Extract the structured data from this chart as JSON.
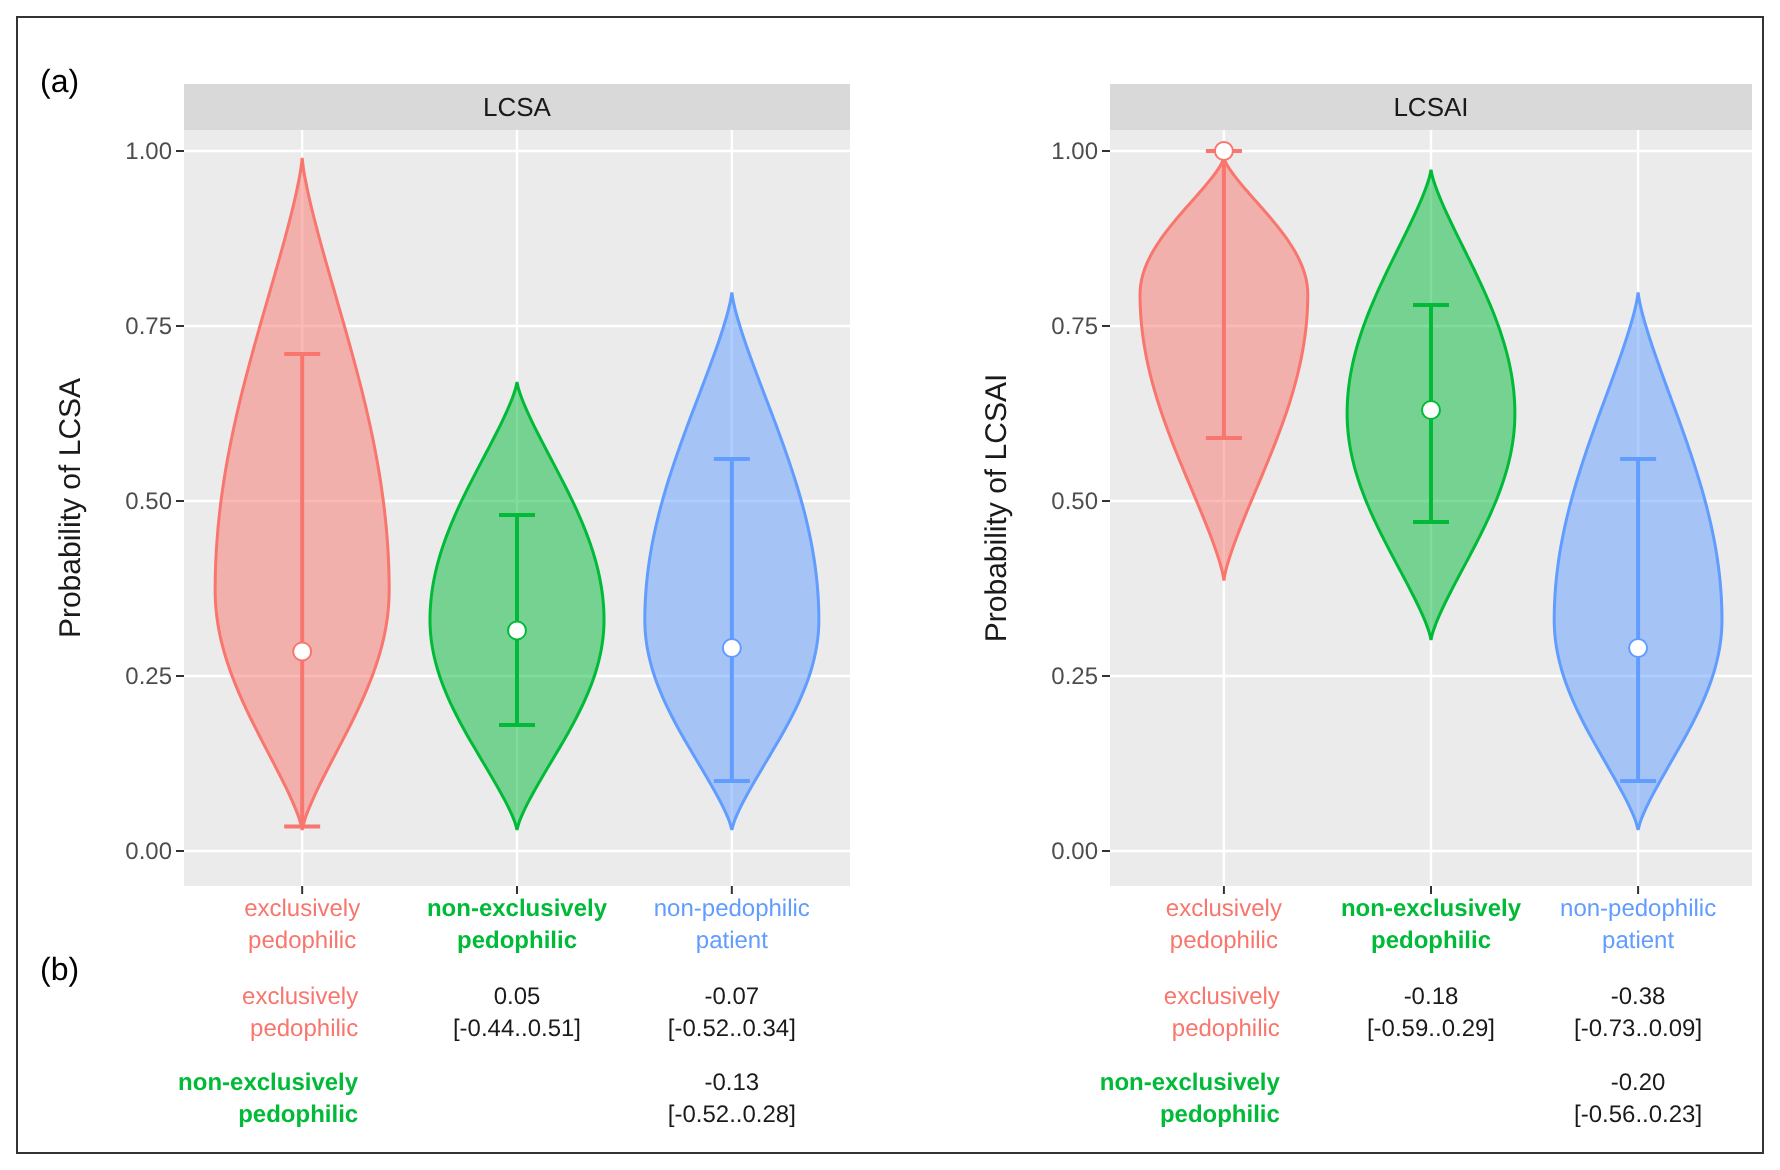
{
  "chart_data": [
    {
      "type": "scatter",
      "title": "LCSA",
      "ylabel": "Probability of LCSA",
      "categories": [
        "exclusively pedophilic",
        "non-exclusively pedophilic",
        "non-pedophilic patient"
      ],
      "colors": [
        "#f8766d",
        "#00ba38",
        "#619cff"
      ],
      "values": [
        0.285,
        0.315,
        0.29
      ],
      "errors": [
        [
          0.035,
          0.71
        ],
        [
          0.18,
          0.48
        ],
        [
          0.1,
          0.56
        ]
      ],
      "ylim": [
        -0.05,
        1.03
      ],
      "yticks": [
        {
          "value": 0,
          "label": "0.00"
        },
        {
          "value": 0.25,
          "label": "0.25"
        },
        {
          "value": 0.5,
          "label": "0.50"
        },
        {
          "value": 0.75,
          "label": "0.75"
        },
        {
          "value": 1,
          "label": "1.00"
        }
      ],
      "grid": true,
      "marker": "circle",
      "annotations": [
        "(a)",
        "(b)",
        "exclusively pedophilic",
        "non-exclusively pedophilic",
        "0.05 [-0.44..0.51]",
        "-0.07 [-0.52..0.34]",
        "-0.13 [-0.52..0.28]"
      ]
    },
    {
      "type": "scatter",
      "title": "LCSAI",
      "ylabel": "Probability of LCSAI",
      "categories": [
        "exclusively pedophilic",
        "non-exclusively pedophilic",
        "non-pedophilic patient"
      ],
      "colors": [
        "#f8766d",
        "#00ba38",
        "#619cff"
      ],
      "values": [
        1.0,
        0.63,
        0.29
      ],
      "errors": [
        [
          0.59,
          1.0
        ],
        [
          0.47,
          0.78
        ],
        [
          0.1,
          0.56
        ]
      ],
      "ylim": [
        -0.05,
        1.03
      ],
      "yticks": [
        {
          "value": 0,
          "label": "0.00"
        },
        {
          "value": 0.25,
          "label": "0.25"
        },
        {
          "value": 0.5,
          "label": "0.50"
        },
        {
          "value": 0.75,
          "label": "0.75"
        },
        {
          "value": 1,
          "label": "1.00"
        }
      ],
      "grid": true,
      "marker": "circle",
      "annotations": [
        "exclusively pedophilic",
        "non-exclusively pedophilic",
        "-0.18 [-0.59..0.29]",
        "-0.38 [-0.73..0.09]",
        "-0.20 [-0.56..0.23]"
      ]
    }
  ]
}
